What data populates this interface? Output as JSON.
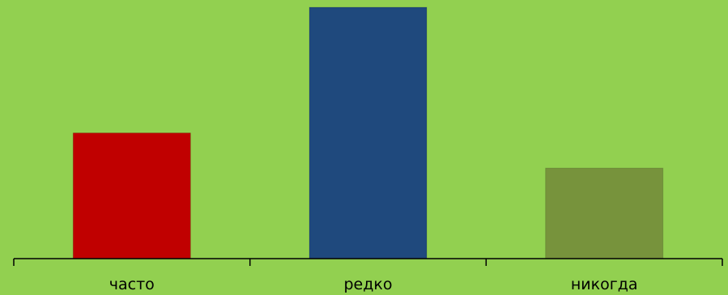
{
  "chart_data": {
    "type": "bar",
    "categories": [
      "часто",
      "редко",
      "никогда"
    ],
    "values": [
      5,
      10,
      3.6
    ],
    "bar_colors": [
      "#C00000",
      "#1F497D",
      "#77933C"
    ],
    "background_color": "#92D050",
    "ylim": [
      0,
      10
    ],
    "grid": false,
    "legend": "none"
  }
}
